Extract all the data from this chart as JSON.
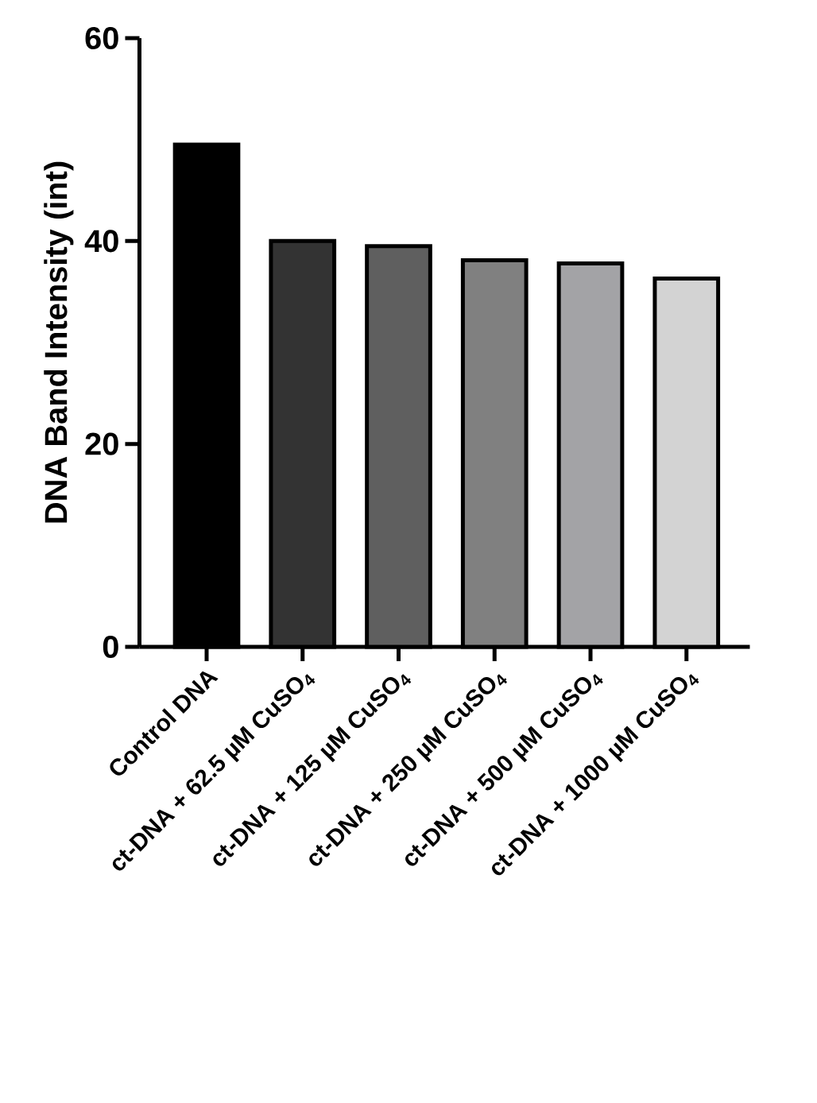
{
  "chart_data": {
    "type": "bar",
    "ylabel": "DNA Band Intensity (int)",
    "categories": [
      "Control DNA",
      "ct-DNA + 62.5 µM CuSO$_{4}$",
      "ct-DNA + 125 µM CuSO$_{4}$",
      "ct-DNA + 250 µM CuSO$_{4}$",
      "ct-DNA + 500 µM CuSO$_{4}$",
      "ct-DNA + 1000 µM CuSO$_{4}$"
    ],
    "values": [
      49.5,
      40.0,
      39.5,
      38.1,
      37.8,
      36.3
    ],
    "colors": [
      "#000000",
      "#333333",
      "#5f5f5f",
      "#808080",
      "#a3a3a6",
      "#d3d3d3"
    ],
    "ylim": [
      0,
      60
    ],
    "yticks": [
      0,
      20,
      40,
      60
    ]
  }
}
